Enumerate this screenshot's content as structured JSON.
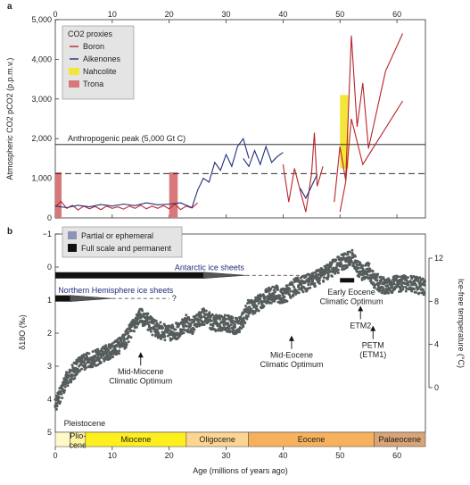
{
  "chart_data": [
    {
      "panel": "a",
      "type": "line",
      "ylabel": "Atmospheric CO2 pCO2 (p.p.m.v.)",
      "ylim": [
        0,
        5000
      ],
      "yticks": [
        0,
        1000,
        2000,
        3000,
        4000,
        5000
      ],
      "ytick_labels": [
        "0",
        "1,000",
        "2,000",
        "3,000",
        "4,000",
        "5,000"
      ],
      "xlim": [
        0,
        65
      ],
      "xticks": [
        0,
        10,
        20,
        30,
        40,
        50,
        60
      ],
      "xtick_labels": [
        "0",
        "10",
        "20",
        "30",
        "40",
        "50",
        "60"
      ],
      "legend": {
        "placement": "top-left",
        "title": "CO2 proxies",
        "entries": [
          {
            "label": "Boron",
            "color": "#b8242a",
            "kind": "line"
          },
          {
            "label": "Alkenones",
            "color": "#1f2f7a",
            "kind": "line"
          },
          {
            "label": "Nahcolite",
            "color": "#f3e53a",
            "kind": "box"
          },
          {
            "label": "Trona",
            "color": "#d9787a",
            "kind": "box"
          }
        ]
      },
      "reference_lines": [
        {
          "y": 1850,
          "label": "Anthropogenic peak (5,000 Gt C)",
          "style": "solid"
        },
        {
          "y": 1120,
          "label": "",
          "style": "dashed"
        }
      ],
      "boxes": [
        {
          "name": "Trona",
          "x0": 0,
          "x1": 1.1,
          "y0": 0,
          "y1": 1150,
          "color": "#d9787a"
        },
        {
          "name": "Trona",
          "x0": 20,
          "x1": 21.5,
          "y0": 0,
          "y1": 1150,
          "color": "#d9787a"
        },
        {
          "name": "Nahcolite",
          "x0": 50,
          "x1": 51.5,
          "y0": 1250,
          "y1": 3100,
          "color": "#f3e53a"
        }
      ],
      "series": [
        {
          "name": "Boron",
          "color": "#b8242a",
          "points": [
            [
              0,
              280
            ],
            [
              1,
              420
            ],
            [
              2,
              240
            ],
            [
              3,
              320
            ],
            [
              4,
              200
            ],
            [
              5,
              300
            ],
            [
              6,
              230
            ],
            [
              7,
              290
            ],
            [
              8,
              210
            ],
            [
              9,
              300
            ],
            [
              10,
              240
            ],
            [
              11,
              280
            ],
            [
              12,
              220
            ],
            [
              13,
              300
            ],
            [
              14,
              240
            ],
            [
              15,
              320
            ],
            [
              16,
              230
            ],
            [
              17,
              300
            ],
            [
              18,
              240
            ],
            [
              19,
              310
            ],
            [
              20,
              230
            ],
            [
              21,
              350
            ],
            [
              22,
              210
            ],
            [
              23,
              300
            ],
            [
              24,
              250
            ],
            [
              25,
              380
            ]
          ]
        },
        {
          "name": "Boron",
          "color": "#b8242a",
          "points": [
            [
              40,
              1350
            ],
            [
              41,
              400
            ],
            [
              42,
              1250
            ],
            [
              43,
              700
            ],
            [
              44,
              150
            ],
            [
              45,
              1100
            ],
            [
              45.5,
              2150
            ],
            [
              46,
              800
            ],
            [
              47,
              1300
            ]
          ]
        },
        {
          "name": "Boron",
          "color": "#b8242a",
          "points": [
            [
              49,
              400
            ],
            [
              50,
              1800
            ],
            [
              51,
              950
            ],
            [
              52,
              4600
            ],
            [
              53,
              2300
            ],
            [
              54,
              3400
            ],
            [
              55,
              1750
            ],
            [
              58,
              3700
            ],
            [
              61,
              4650
            ]
          ]
        },
        {
          "name": "Boron",
          "color": "#b8242a",
          "points": [
            [
              50,
              150
            ],
            [
              51,
              900
            ],
            [
              52,
              2500
            ],
            [
              54,
              1350
            ],
            [
              61,
              2950
            ]
          ]
        },
        {
          "name": "Alkenones",
          "color": "#1f2f7a",
          "points": [
            [
              0,
              300
            ],
            [
              2,
              260
            ],
            [
              4,
              320
            ],
            [
              6,
              280
            ],
            [
              8,
              340
            ],
            [
              10,
              300
            ],
            [
              12,
              350
            ],
            [
              14,
              310
            ],
            [
              16,
              380
            ],
            [
              18,
              330
            ],
            [
              20,
              350
            ],
            [
              22,
              380
            ],
            [
              24,
              260
            ],
            [
              25,
              700
            ],
            [
              26,
              1000
            ],
            [
              27,
              900
            ],
            [
              28,
              1400
            ],
            [
              29,
              1200
            ],
            [
              30,
              1600
            ],
            [
              31,
              1300
            ],
            [
              32,
              1800
            ],
            [
              33,
              2000
            ],
            [
              34,
              1500
            ]
          ]
        },
        {
          "name": "Alkenones",
          "color": "#1f2f7a",
          "points": [
            [
              33,
              1500
            ],
            [
              34,
              1300
            ],
            [
              35,
              1700
            ],
            [
              36,
              1350
            ],
            [
              37,
              1800
            ],
            [
              38,
              1400
            ],
            [
              39,
              1550
            ],
            [
              40,
              1650
            ]
          ]
        },
        {
          "name": "Alkenones",
          "color": "#1f2f7a",
          "points": [
            [
              43,
              750
            ],
            [
              44,
              500
            ],
            [
              46,
              1100
            ]
          ]
        }
      ]
    },
    {
      "panel": "b",
      "type": "scatter",
      "ylabel": "δ18O (‰)",
      "ylim": [
        5,
        -1
      ],
      "yticks": [
        -1,
        0,
        1,
        2,
        3,
        4,
        5
      ],
      "ytick_labels": [
        "−1",
        "0",
        "1",
        "2",
        "3",
        "4",
        "5"
      ],
      "y2label": "Ice-free temperature (°C)",
      "y2ticks": [
        12,
        8,
        4,
        0
      ],
      "y2tick_labels": [
        "12",
        "8",
        "4",
        "0"
      ],
      "xlim": [
        0,
        65
      ],
      "xticks": [
        0,
        10,
        20,
        30,
        40,
        50,
        60
      ],
      "xtick_labels": [
        "0",
        "10",
        "20",
        "30",
        "40",
        "50",
        "60"
      ],
      "xlabel": "Age (millions of years ago)",
      "legend": {
        "placement": "top-left",
        "entries": [
          {
            "label": "Partial or ephemeral",
            "color": "#8e93b8",
            "kind": "gradient"
          },
          {
            "label": "Full scale and permanent",
            "color": "#111111",
            "kind": "box"
          }
        ]
      },
      "ice_sheets": [
        {
          "label": "Antarctic ice sheets",
          "full": [
            0,
            26
          ],
          "partial": [
            26,
            33.5
          ],
          "dashed_to": 45,
          "y": 0.25
        },
        {
          "label": "Northern Hemisphere ice sheets",
          "full": [
            0,
            2.6
          ],
          "partial": [
            2.6,
            10
          ],
          "dashed_to": 20,
          "y": 0.95,
          "query": "?"
        }
      ],
      "annotations": [
        {
          "text": "Mid-Miocene\nClimatic Optimum",
          "x": 15,
          "y": 2.6
        },
        {
          "text": "Mid-Eocene\nClimatic Optimum",
          "x": 41.5,
          "y": 2.1
        },
        {
          "text": "Early Eocene\nClimatic Optimum",
          "x": 52,
          "y": 0.4
        },
        {
          "text": "ETM2",
          "x": 53.6,
          "y": 1.2
        },
        {
          "text": "PETM\n(ETM1)",
          "x": 55.8,
          "y": 1.8
        },
        {
          "text": "Pleistocene",
          "x": 1.5,
          "y": 4.6
        }
      ],
      "eocene_optimum_bar": {
        "x0": 50,
        "x1": 52.5,
        "y": 0.4
      },
      "series": [
        {
          "name": "δ18O",
          "color": "#555c5c",
          "points": [
            [
              0,
              4.2
            ],
            [
              1,
              3.8
            ],
            [
              2,
              3.4
            ],
            [
              3,
              3.2
            ],
            [
              4,
              3.0
            ],
            [
              5,
              2.9
            ],
            [
              6,
              2.8
            ],
            [
              8,
              2.7
            ],
            [
              10,
              2.5
            ],
            [
              12,
              2.3
            ],
            [
              13,
              2.0
            ],
            [
              14,
              1.7
            ],
            [
              15,
              1.5
            ],
            [
              16,
              1.6
            ],
            [
              17,
              1.8
            ],
            [
              18,
              1.9
            ],
            [
              20,
              2.0
            ],
            [
              22,
              1.9
            ],
            [
              23,
              1.7
            ],
            [
              24,
              1.8
            ],
            [
              25,
              1.6
            ],
            [
              26,
              1.5
            ],
            [
              27,
              1.6
            ],
            [
              28,
              1.7
            ],
            [
              30,
              1.7
            ],
            [
              32,
              1.8
            ],
            [
              33,
              1.6
            ],
            [
              34,
              1.2
            ],
            [
              35,
              1.2
            ],
            [
              37,
              0.9
            ],
            [
              39,
              0.8
            ],
            [
              40,
              0.9
            ],
            [
              42,
              0.6
            ],
            [
              44,
              0.5
            ],
            [
              46,
              0.3
            ],
            [
              48,
              0.1
            ],
            [
              50,
              -0.1
            ],
            [
              51,
              -0.2
            ],
            [
              52,
              -0.3
            ],
            [
              53,
              0.0
            ],
            [
              54,
              0.2
            ],
            [
              55,
              0.1
            ],
            [
              56,
              0.4
            ],
            [
              58,
              0.6
            ],
            [
              60,
              0.5
            ],
            [
              62,
              0.5
            ],
            [
              65,
              0.6
            ]
          ]
        }
      ]
    }
  ],
  "panel_a_label": "a",
  "panel_b_label": "b",
  "epochs": [
    {
      "name": "Pleistocene",
      "x0": 0,
      "x1": 2.6,
      "color": "#fff9c8",
      "label": ""
    },
    {
      "name": "Pliocene",
      "x0": 2.6,
      "x1": 5.3,
      "color": "#fff5a0",
      "label": "Plio-\ncene"
    },
    {
      "name": "Miocene",
      "x0": 5.3,
      "x1": 23,
      "color": "#ffef1e",
      "label": "Miocene"
    },
    {
      "name": "Oligocene",
      "x0": 23,
      "x1": 33.9,
      "color": "#fcd592",
      "label": "Oligocene"
    },
    {
      "name": "Eocene",
      "x0": 33.9,
      "x1": 56,
      "color": "#f7b15c",
      "label": "Eocene"
    },
    {
      "name": "Palaeocene",
      "x0": 56,
      "x1": 65,
      "color": "#d9a476",
      "label": "Palaeocene"
    }
  ]
}
